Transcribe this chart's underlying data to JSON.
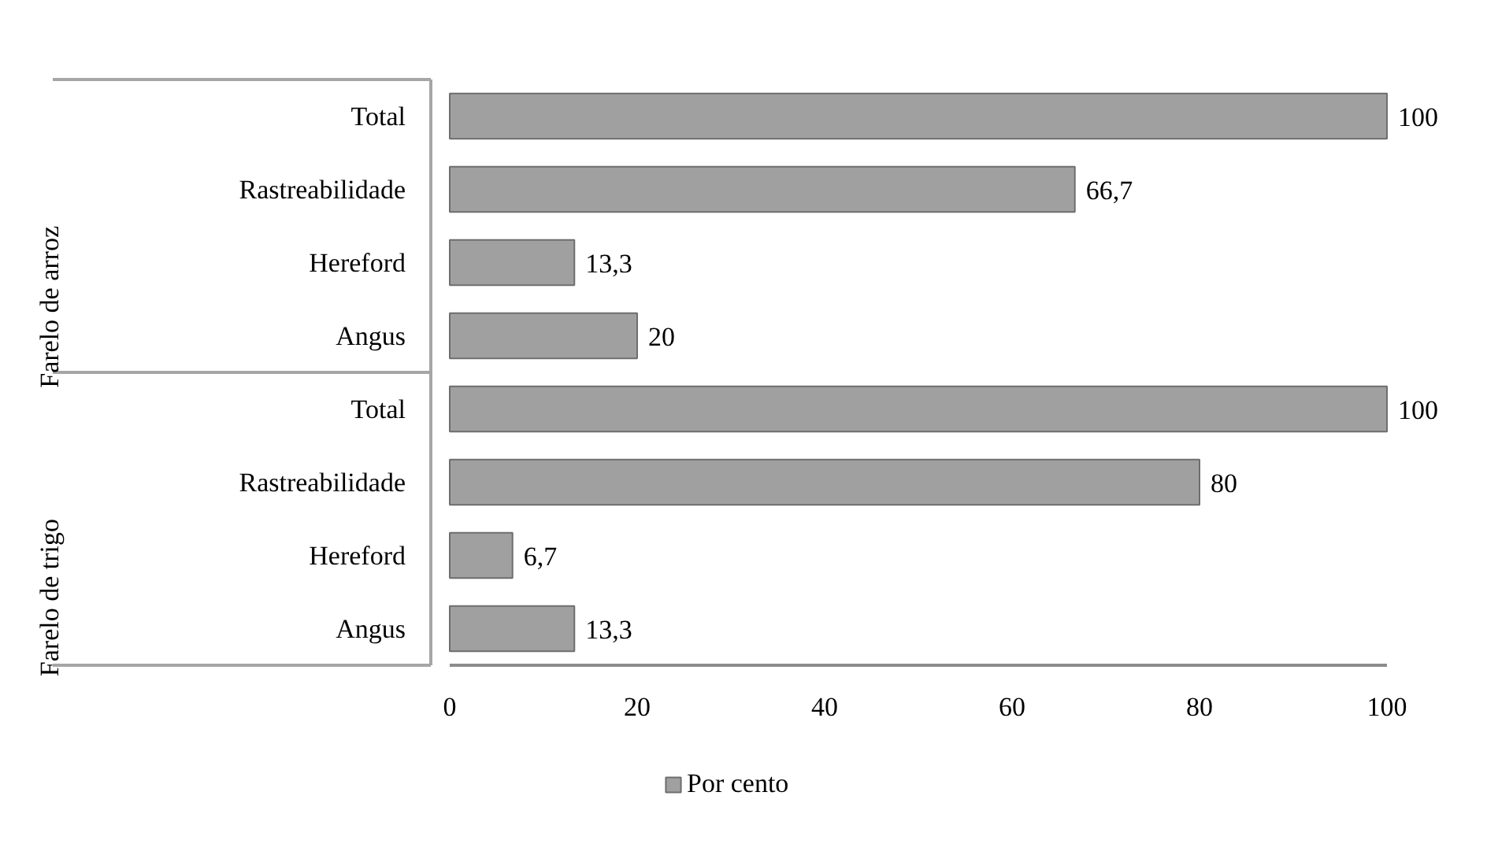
{
  "chart_data": {
    "type": "bar",
    "orientation": "horizontal",
    "categories": [
      "Total",
      "Rastreabilidade",
      "Hereford",
      "Angus",
      "Total",
      "Rastreabilidade",
      "Hereford",
      "Angus"
    ],
    "annotations": [
      "Farelo de arroz",
      "Farelo de trigo"
    ],
    "series": [
      {
        "name": "Por cento",
        "color": "#a0a0a0",
        "values": [
          100,
          66.7,
          13.3,
          20,
          100,
          80,
          6.7,
          13.3
        ],
        "value_labels": [
          "100",
          "66,7",
          "13,3",
          "20",
          "100",
          "80",
          "6,7",
          "13,3"
        ]
      }
    ],
    "xlim": [
      0,
      100
    ],
    "xticks": [
      0,
      20,
      40,
      60,
      80,
      100
    ],
    "legend": "bottom"
  }
}
